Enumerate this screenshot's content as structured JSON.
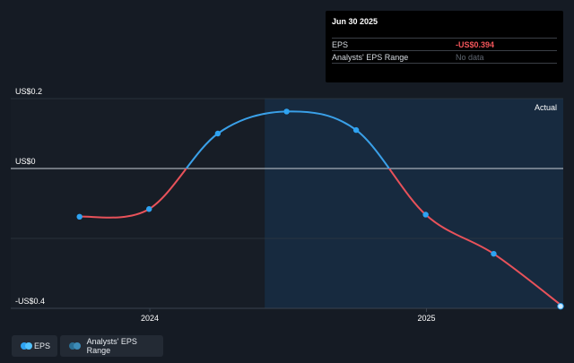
{
  "tooltip": {
    "date": "Jun 30 2025",
    "rows": [
      {
        "label": "EPS",
        "value": "-US$0.394"
      },
      {
        "label": "Analysts' EPS Range",
        "value": "No data"
      }
    ]
  },
  "legend": {
    "eps_label": "EPS",
    "range_label": "Analysts' EPS Range"
  },
  "colors": {
    "positive": "#3aa0e8",
    "negative": "#e8525a",
    "background": "#151b24",
    "actual_region": "#172a3f"
  },
  "chart_data": {
    "type": "line",
    "title": "",
    "xlabel": "",
    "ylabel": "",
    "ylim": [
      -0.4,
      0.2
    ],
    "ytick_labels": [
      {
        "value": 0.2,
        "label": "US$0.2"
      },
      {
        "value": 0,
        "label": "US$0"
      },
      {
        "value": -0.4,
        "label": "-US$0.4"
      }
    ],
    "ygrid_values": [
      0.2,
      0,
      -0.2,
      -0.4
    ],
    "xtick_labels": [
      {
        "date": "2024-01-01",
        "label": "2024"
      },
      {
        "date": "2025-01-01",
        "label": "2025"
      }
    ],
    "xlim": [
      "2023-07-01",
      "2025-07-01"
    ],
    "region_label": "Actual",
    "region_start": "2024-06-01",
    "series": [
      {
        "points": [
          {
            "date": "2023-09-30",
            "eps": -0.138
          },
          {
            "date": "2023-12-31",
            "eps": -0.116
          },
          {
            "date": "2024-03-31",
            "eps": 0.1
          },
          {
            "date": "2024-06-30",
            "eps": 0.163
          },
          {
            "date": "2024-09-30",
            "eps": 0.11
          },
          {
            "date": "2024-12-31",
            "eps": -0.132
          },
          {
            "date": "2025-03-31",
            "eps": -0.244
          },
          {
            "date": "2025-06-30",
            "eps": -0.394
          }
        ]
      }
    ]
  }
}
